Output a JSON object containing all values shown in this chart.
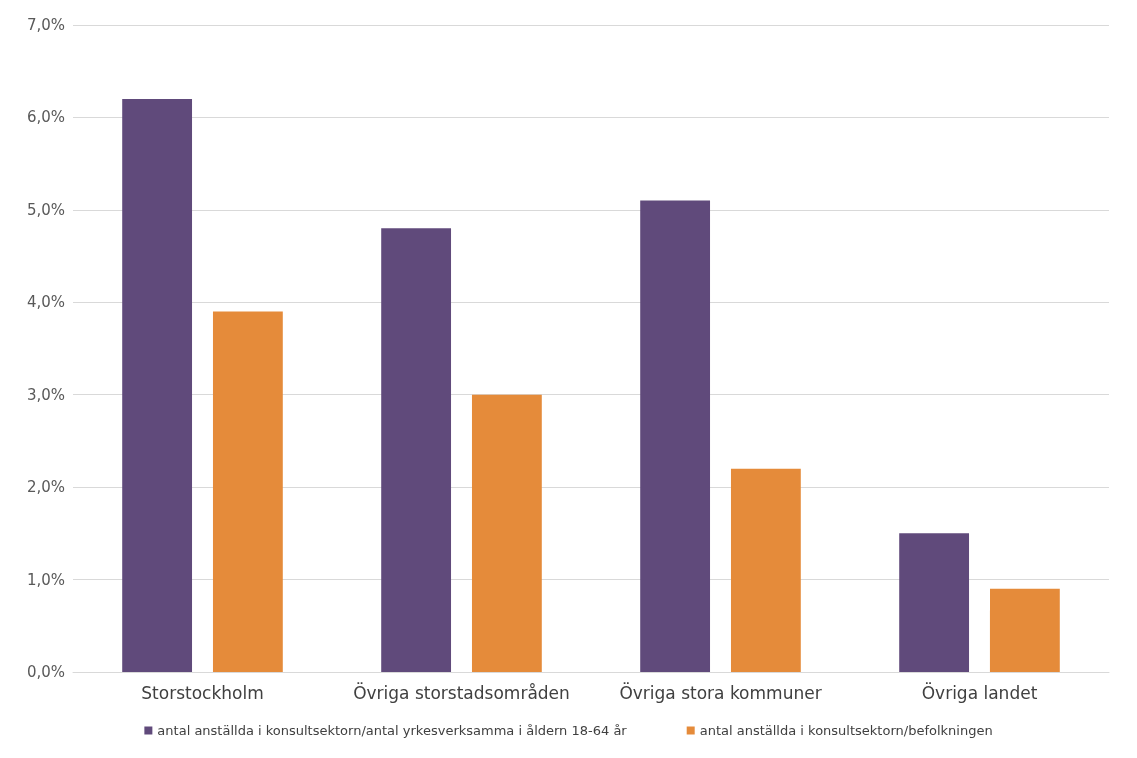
{
  "chart_data": {
    "type": "bar",
    "categories": [
      "Storstockholm",
      "Övriga storstadsområden",
      "Övriga stora kommuner",
      "Övriga landet"
    ],
    "series": [
      {
        "name": "antal anställda i konsultsektorn/antal yrkesverksamma i åldern 18-64 år",
        "color": "#604a7b",
        "values": [
          6.2,
          4.8,
          5.1,
          1.5
        ]
      },
      {
        "name": "antal anställda i konsultsektorn/befolkningen",
        "color": "#e58b3a",
        "values": [
          3.9,
          3.0,
          2.2,
          0.9
        ]
      }
    ],
    "ylim": [
      0,
      7
    ],
    "yticks": [
      {
        "value": 0,
        "label": "0,0%"
      },
      {
        "value": 1,
        "label": "1,0%"
      },
      {
        "value": 2,
        "label": "2,0%"
      },
      {
        "value": 3,
        "label": "3,0%"
      },
      {
        "value": 4,
        "label": "4,0%"
      },
      {
        "value": 5,
        "label": "5,0%"
      },
      {
        "value": 6,
        "label": "6,0%"
      },
      {
        "value": 7,
        "label": "7,0%"
      }
    ],
    "grid": "y",
    "legend": "bottom"
  }
}
